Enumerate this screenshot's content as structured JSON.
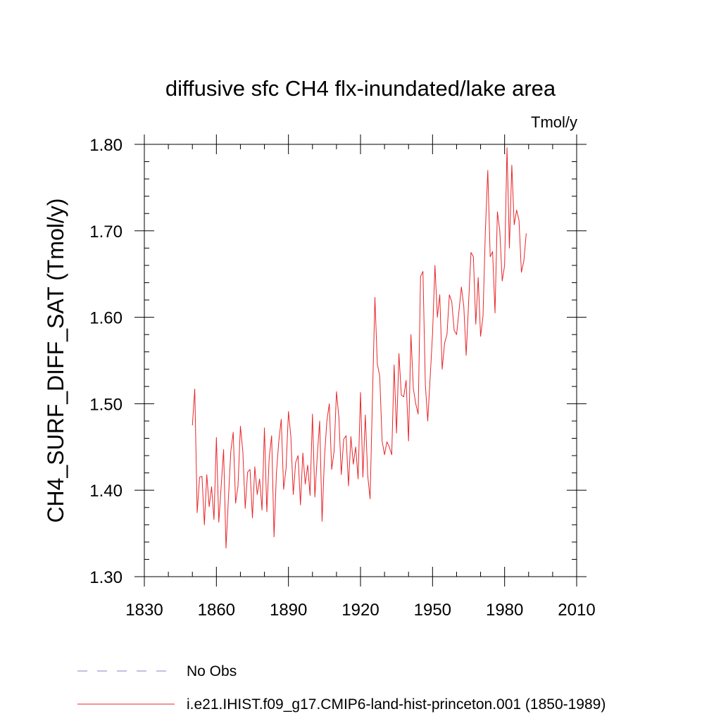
{
  "chart_data": {
    "type": "line",
    "title": "diffusive sfc CH4 flx-inundated/lake area",
    "units": "Tmol/y",
    "ylabel": "CH4_SURF_DIFF_SAT  (Tmol/y)",
    "xlabel": "",
    "xlim": [
      1830,
      2010
    ],
    "ylim": [
      1.3,
      1.8
    ],
    "x_ticks": [
      1830,
      1860,
      1890,
      1920,
      1950,
      1980,
      2010
    ],
    "x_tick_labels": [
      "1830",
      "1860",
      "1890",
      "1920",
      "1950",
      "1980",
      "2010"
    ],
    "y_ticks": [
      1.3,
      1.4,
      1.5,
      1.6,
      1.7,
      1.8
    ],
    "y_tick_labels": [
      "1.30",
      "1.40",
      "1.50",
      "1.60",
      "1.70",
      "1.80"
    ],
    "grid": false,
    "legend_position": "bottom",
    "legend": [
      {
        "label": "No Obs",
        "style": "dashed",
        "color": "#8a80c0"
      },
      {
        "label": "i.e21.IHIST.f09_g17.CMIP6-land-hist-princeton.001 (1850-1989)",
        "style": "solid",
        "color": "#e8262a"
      }
    ],
    "series": [
      {
        "color": "#e8262a",
        "x_start": 1850,
        "x_step": 1,
        "values": [
          1.475,
          1.517,
          1.374,
          1.415,
          1.416,
          1.36,
          1.418,
          1.381,
          1.404,
          1.366,
          1.461,
          1.363,
          1.405,
          1.447,
          1.333,
          1.39,
          1.445,
          1.467,
          1.385,
          1.405,
          1.474,
          1.445,
          1.379,
          1.421,
          1.424,
          1.368,
          1.427,
          1.395,
          1.413,
          1.377,
          1.472,
          1.375,
          1.438,
          1.463,
          1.346,
          1.42,
          1.457,
          1.482,
          1.401,
          1.425,
          1.491,
          1.462,
          1.395,
          1.432,
          1.44,
          1.383,
          1.443,
          1.407,
          1.429,
          1.394,
          1.488,
          1.392,
          1.44,
          1.48,
          1.364,
          1.438,
          1.48,
          1.5,
          1.424,
          1.445,
          1.514,
          1.484,
          1.418,
          1.459,
          1.463,
          1.405,
          1.462,
          1.43,
          1.45,
          1.413,
          1.513,
          1.415,
          1.487,
          1.417,
          1.39,
          1.51,
          1.623,
          1.546,
          1.532,
          1.457,
          1.441,
          1.456,
          1.45,
          1.441,
          1.545,
          1.466,
          1.558,
          1.51,
          1.508,
          1.527,
          1.457,
          1.58,
          1.518,
          1.5,
          1.488,
          1.647,
          1.653,
          1.522,
          1.48,
          1.53,
          1.581,
          1.66,
          1.6,
          1.626,
          1.54,
          1.57,
          1.58,
          1.626,
          1.618,
          1.585,
          1.58,
          1.607,
          1.635,
          1.613,
          1.556,
          1.616,
          1.675,
          1.67,
          1.592,
          1.646,
          1.578,
          1.601,
          1.701,
          1.77,
          1.67,
          1.676,
          1.605,
          1.722,
          1.7,
          1.642,
          1.66,
          1.796,
          1.68,
          1.776,
          1.707,
          1.724,
          1.712,
          1.652,
          1.665,
          1.697
        ]
      }
    ]
  }
}
